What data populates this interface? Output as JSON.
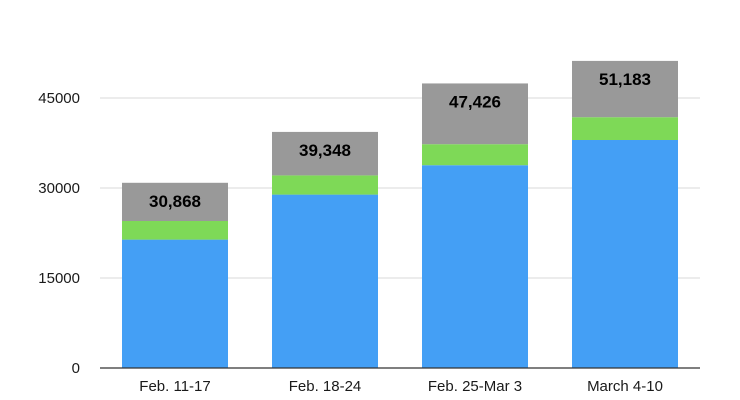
{
  "chart_data": {
    "type": "bar",
    "stacked": true,
    "categories": [
      "Feb. 11-17",
      "Feb. 18-24",
      "Feb. 25-Mar 3",
      "March 4-10"
    ],
    "series": [
      {
        "values": [
          21400,
          28900,
          33800,
          38000
        ],
        "color": "#449ff5"
      },
      {
        "values": [
          3100,
          3200,
          3500,
          3800
        ],
        "color": "#7ed957"
      },
      {
        "values": [
          6368,
          7248,
          10126,
          9383
        ],
        "color": "#999999"
      }
    ],
    "totals": [
      30868,
      39348,
      47426,
      51183
    ],
    "total_labels": [
      "30,868",
      "39,348",
      "47,426",
      "51,183"
    ],
    "yticks": [
      0,
      15000,
      30000,
      45000
    ],
    "ytick_labels": [
      "0",
      "15000",
      "30000",
      "45000"
    ],
    "ylim": [
      0,
      60000
    ],
    "grid": true,
    "title": "",
    "xlabel": "",
    "ylabel": ""
  }
}
